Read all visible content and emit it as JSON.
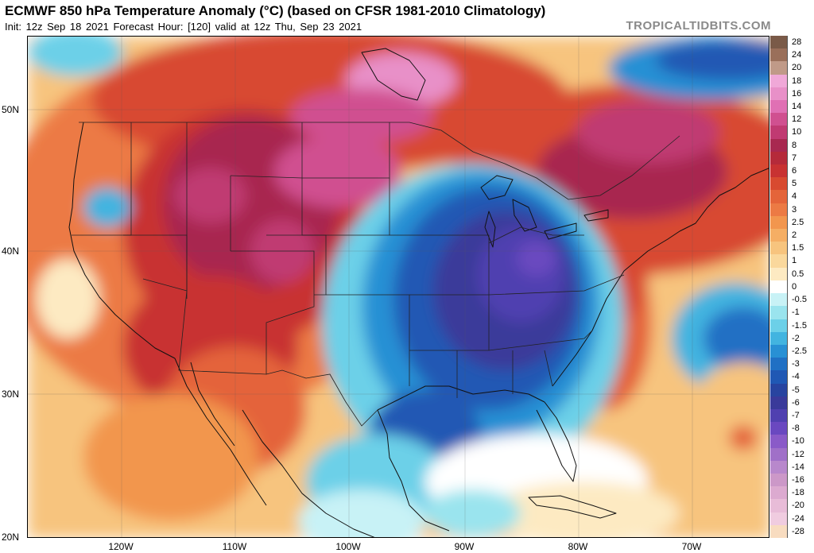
{
  "header": {
    "title": "ECMWF 850 hPa Temperature Anomaly (°C) (based on CFSR 1981-2010 Climatology)",
    "subtitle": "Init: 12z Sep 18 2021   Forecast Hour: [120]   valid at 12z Thu, Sep 23 2021",
    "watermark": "TROPICALTIDBITS.COM"
  },
  "map": {
    "lat_labels": [
      "50N",
      "40N",
      "30N",
      "20N"
    ],
    "lon_labels": [
      "120W",
      "110W",
      "100W",
      "90W",
      "80W",
      "70W"
    ]
  },
  "colorbar": {
    "levels": [
      {
        "label": "28",
        "color": "#7a5a48"
      },
      {
        "label": "24",
        "color": "#9a6f5a"
      },
      {
        "label": "20",
        "color": "#c09a88"
      },
      {
        "label": "18",
        "color": "#f0a8d8"
      },
      {
        "label": "16",
        "color": "#e890c8"
      },
      {
        "label": "14",
        "color": "#e070b4"
      },
      {
        "label": "12",
        "color": "#d05090"
      },
      {
        "label": "10",
        "color": "#c03a72"
      },
      {
        "label": "8",
        "color": "#a82850"
      },
      {
        "label": "7",
        "color": "#b52a3a"
      },
      {
        "label": "6",
        "color": "#c83232"
      },
      {
        "label": "5",
        "color": "#d84a30"
      },
      {
        "label": "4",
        "color": "#e4643a"
      },
      {
        "label": "3",
        "color": "#ec7a44"
      },
      {
        "label": "2.5",
        "color": "#f2964e"
      },
      {
        "label": "2",
        "color": "#f5ae64"
      },
      {
        "label": "1.5",
        "color": "#f7c47e"
      },
      {
        "label": "1",
        "color": "#fad89c"
      },
      {
        "label": "0.5",
        "color": "#fdeac2"
      },
      {
        "label": "0",
        "color": "#ffffff"
      },
      {
        "label": "-0.5",
        "color": "#c8f2f6"
      },
      {
        "label": "-1",
        "color": "#9ae4ee"
      },
      {
        "label": "-1.5",
        "color": "#6cd0e8"
      },
      {
        "label": "-2",
        "color": "#42b4e0"
      },
      {
        "label": "-2.5",
        "color": "#2890d4"
      },
      {
        "label": "-3",
        "color": "#2070c4"
      },
      {
        "label": "-4",
        "color": "#2058b4"
      },
      {
        "label": "-5",
        "color": "#2844a0"
      },
      {
        "label": "-6",
        "color": "#3a3a9a"
      },
      {
        "label": "-7",
        "color": "#5040b0"
      },
      {
        "label": "-8",
        "color": "#6a48c0"
      },
      {
        "label": "-10",
        "color": "#8a5ac8"
      },
      {
        "label": "-12",
        "color": "#a070c8"
      },
      {
        "label": "-14",
        "color": "#b888cc"
      },
      {
        "label": "-16",
        "color": "#cc98c8"
      },
      {
        "label": "-18",
        "color": "#dcaad0"
      },
      {
        "label": "-20",
        "color": "#e8bcd8"
      },
      {
        "label": "-24",
        "color": "#f0cce0"
      },
      {
        "label": "-28",
        "color": "#f8dcc0"
      }
    ]
  }
}
